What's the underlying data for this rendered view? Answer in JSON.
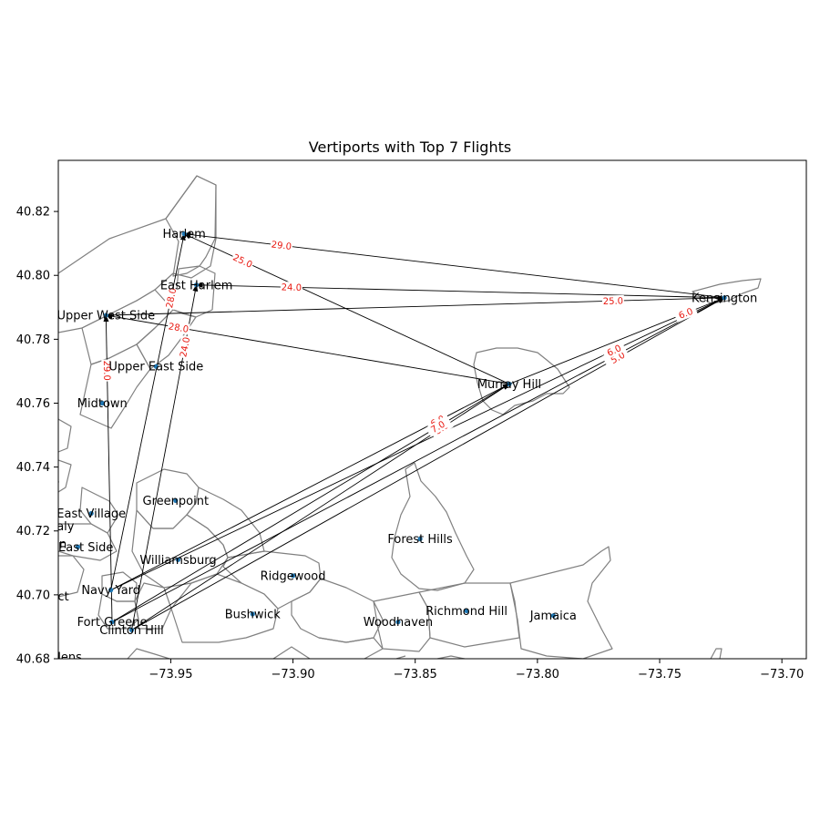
{
  "chart_data": {
    "type": "map",
    "title": "Vertiports with Top 7 Flights",
    "xlim": [
      -73.996,
      -73.69
    ],
    "ylim": [
      40.68,
      40.836
    ],
    "xticks": [
      -73.95,
      -73.9,
      -73.85,
      -73.8,
      -73.75,
      -73.7
    ],
    "xtick_labels": [
      "−73.95",
      "−73.90",
      "−73.85",
      "−73.80",
      "−73.75",
      "−73.70"
    ],
    "yticks": [
      40.68,
      40.7,
      40.72,
      40.74,
      40.76,
      40.78,
      40.8,
      40.82
    ],
    "ytick_labels": [
      "40.68",
      "40.70",
      "40.72",
      "40.74",
      "40.76",
      "40.78",
      "40.80",
      "40.82"
    ],
    "colors": {
      "boundary": "#808080",
      "flight": "#000000",
      "flight_label": "#e8170f",
      "vertiport": "#1f77b4"
    },
    "vertiports": [
      {
        "name": "Harlem",
        "lon": -73.9445,
        "lat": 40.813
      },
      {
        "name": "East Harlem",
        "lon": -73.9395,
        "lat": 40.797
      },
      {
        "name": "Upper West Side",
        "lon": -73.9765,
        "lat": 40.7875
      },
      {
        "name": "Upper East Side",
        "lon": -73.956,
        "lat": 40.7715
      },
      {
        "name": "Midtown",
        "lon": -73.978,
        "lat": 40.76
      },
      {
        "name": "ea",
        "lon": -73.9985,
        "lat": 40.7475
      },
      {
        "name": "ge",
        "lon": -73.9985,
        "lat": 40.7355
      },
      {
        "name": "Greenpoint",
        "lon": -73.948,
        "lat": 40.7295
      },
      {
        "name": "East Village",
        "lon": -73.9825,
        "lat": 40.7255
      },
      {
        "name": "e Italy",
        "lon": -73.997,
        "lat": 40.7215
      },
      {
        "name": "town",
        "lon": -73.9985,
        "lat": 40.716
      },
      {
        "name": "er East Side",
        "lon": -73.988,
        "lat": 40.715
      },
      {
        "name": "Williamsburg",
        "lon": -73.947,
        "lat": 40.711
      },
      {
        "name": "istrict",
        "lon": -73.9985,
        "lat": 40.6995
      },
      {
        "name": "Navy Yard",
        "lon": -73.9745,
        "lat": 40.7015
      },
      {
        "name": "Ridgewood",
        "lon": -73.9,
        "lat": 40.706
      },
      {
        "name": "Bushwick",
        "lon": -73.9165,
        "lat": 40.694
      },
      {
        "name": "Fort Greene",
        "lon": -73.974,
        "lat": 40.6915
      },
      {
        "name": "Clinton Hill",
        "lon": -73.966,
        "lat": 40.689
      },
      {
        "name": "Gardens",
        "lon": -73.9965,
        "lat": 40.6805
      },
      {
        "name": "Forest Hills",
        "lon": -73.848,
        "lat": 40.7175
      },
      {
        "name": "Richmond Hill",
        "lon": -73.829,
        "lat": 40.695
      },
      {
        "name": "Woodhaven",
        "lon": -73.857,
        "lat": 40.6915
      },
      {
        "name": "Jamaica",
        "lon": -73.7935,
        "lat": 40.6935
      },
      {
        "name": "Murray Hill",
        "lon": -73.8115,
        "lat": 40.766
      },
      {
        "name": "Kensington",
        "lon": -73.7235,
        "lat": 40.793
      }
    ],
    "flights": [
      {
        "from": "Kensington",
        "to": "Harlem",
        "value": 29.0
      },
      {
        "from": "Murray Hill",
        "to": "Harlem",
        "value": 25.0
      },
      {
        "from": "Kensington",
        "to": "East Harlem",
        "value": 24.0
      },
      {
        "from": "Upper West Side",
        "to": "Kensington",
        "value": 25.0
      },
      {
        "from": "Murray Hill",
        "to": "Upper West Side",
        "value": 28.0
      },
      {
        "from": "Navy Yard",
        "to": "Harlem",
        "value": 28.0
      },
      {
        "from": "Clinton Hill",
        "to": "East Harlem",
        "value": 24.0
      },
      {
        "from": "Fort Greene",
        "to": "Upper West Side",
        "value": 29.0
      },
      {
        "from": "Navy Yard",
        "to": "Murray Hill",
        "value": 6.0
      },
      {
        "from": "Fort Greene",
        "to": "Kensington",
        "value": 5.0
      },
      {
        "from": "Clinton Hill",
        "to": "Murray Hill",
        "value": 8.0
      },
      {
        "from": "Fort Greene",
        "to": "Murray Hill",
        "value": 7.0
      },
      {
        "from": "Clinton Hill",
        "to": "Kensington",
        "value": 5.0
      },
      {
        "from": "Murray Hill",
        "to": "Kensington",
        "value": 6.0
      },
      {
        "from": "Navy Yard",
        "to": "Kensington",
        "value": 6.0
      }
    ]
  }
}
